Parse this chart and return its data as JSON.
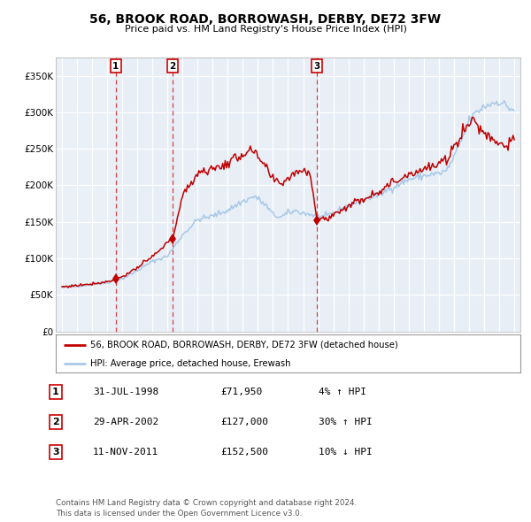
{
  "title": "56, BROOK ROAD, BORROWASH, DERBY, DE72 3FW",
  "subtitle": "Price paid vs. HM Land Registry's House Price Index (HPI)",
  "hpi_color": "#a8c8e8",
  "price_color": "#c00000",
  "plot_bg": "#eef3f9",
  "sale_years": [
    1998.583,
    2002.333,
    2011.917
  ],
  "sale_prices": [
    71950,
    127000,
    152500
  ],
  "sale_labels": [
    "1",
    "2",
    "3"
  ],
  "legend_price": "56, BROOK ROAD, BORROWASH, DERBY, DE72 3FW (detached house)",
  "legend_hpi": "HPI: Average price, detached house, Erewash",
  "table_data": [
    [
      "1",
      "31-JUL-1998",
      "£71,950",
      "4% ↑ HPI"
    ],
    [
      "2",
      "29-APR-2002",
      "£127,000",
      "30% ↑ HPI"
    ],
    [
      "3",
      "11-NOV-2011",
      "£152,500",
      "10% ↓ HPI"
    ]
  ],
  "footer": "Contains HM Land Registry data © Crown copyright and database right 2024.\nThis data is licensed under the Open Government Licence v3.0.",
  "ylim": [
    0,
    375000
  ],
  "yticks": [
    0,
    50000,
    100000,
    150000,
    200000,
    250000,
    300000,
    350000
  ],
  "ytick_labels": [
    "£0",
    "£50K",
    "£100K",
    "£150K",
    "£200K",
    "£250K",
    "£300K",
    "£350K"
  ],
  "xlim_start": 1994.6,
  "xlim_end": 2025.4,
  "xticks": [
    1995,
    1996,
    1997,
    1998,
    1999,
    2000,
    2001,
    2002,
    2003,
    2004,
    2005,
    2006,
    2007,
    2008,
    2009,
    2010,
    2011,
    2012,
    2013,
    2014,
    2015,
    2016,
    2017,
    2018,
    2019,
    2020,
    2021,
    2022,
    2023,
    2024,
    2025
  ]
}
